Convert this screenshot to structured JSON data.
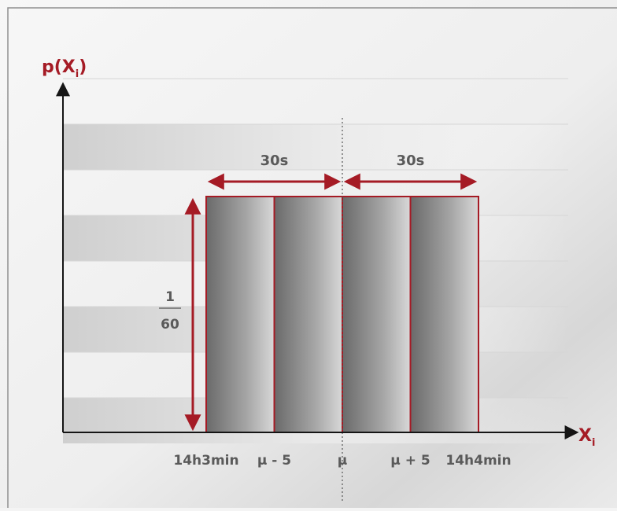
{
  "chart_data": {
    "type": "bar",
    "title": "",
    "ylabel": "p(X",
    "ylabel_sub": "i",
    "xlabel": "X",
    "xlabel_sub": "i",
    "x_tick_labels": [
      "14h3min",
      "μ - 5",
      "μ",
      "μ + 5",
      "14h4min"
    ],
    "x_range": [
      -30,
      30
    ],
    "bars": [
      {
        "from": -30,
        "to": -15,
        "value": 1
      },
      {
        "from": -15,
        "to": 0,
        "value": 1
      },
      {
        "from": 0,
        "to": 15,
        "value": 1
      },
      {
        "from": 15,
        "to": 30,
        "value": 1
      }
    ],
    "height_label": {
      "numerator": "1",
      "denominator": "60"
    },
    "span_labels": [
      "30s",
      "30s"
    ],
    "mean_line": true,
    "grid": true,
    "colors": {
      "outline": "#a51b25",
      "axis": "#151515",
      "text": "#5a5a5a",
      "grid": "#d6d6d6"
    }
  }
}
